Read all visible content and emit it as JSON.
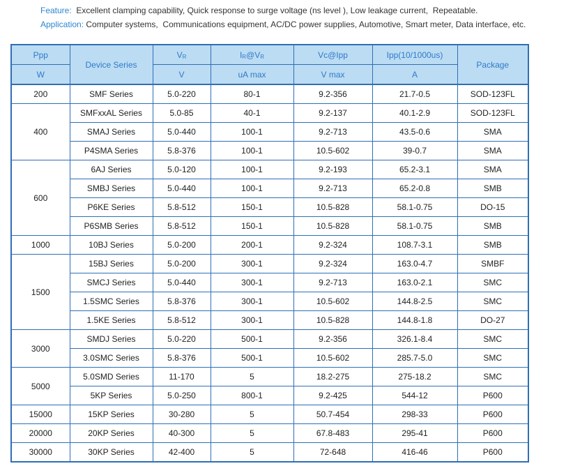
{
  "intro": {
    "feature": {
      "label": "Feature:",
      "text": "Excellent clamping capability, Quick response to surge voltage (ns level ), Low leakage current,  Repeatable."
    },
    "application": {
      "label": "Application:",
      "text": "Computer systems,  Communications equipment, AC/DC power supplies, Automotive, Smart meter, Data interface, etc."
    }
  },
  "table": {
    "header": {
      "ppp": "Ppp",
      "ppp_unit": "W",
      "series": "Device Series",
      "vr": [
        "V",
        "R"
      ],
      "vr_unit": "V",
      "ir": [
        "I",
        "R",
        "@V",
        "R"
      ],
      "ir_unit": "uA  max",
      "vc": "Vc@Ipp",
      "vc_unit": "V  max",
      "ipp": "Ipp(10/1000us)",
      "ipp_unit": "A",
      "package": "Package"
    },
    "groups": [
      {
        "ppp": "200",
        "rows": [
          [
            "SMF Series",
            "5.0-220",
            "80-1",
            "9.2-356",
            "21.7-0.5",
            "SOD-123FL"
          ]
        ]
      },
      {
        "ppp": "400",
        "rows": [
          [
            "SMFxxAL Series",
            "5.0-85",
            "40-1",
            "9.2-137",
            "40.1-2.9",
            "SOD-123FL"
          ],
          [
            "SMAJ Series",
            "5.0-440",
            "100-1",
            "9.2-713",
            "43.5-0.6",
            "SMA"
          ],
          [
            "P4SMA Series",
            "5.8-376",
            "100-1",
            "10.5-602",
            "39-0.7",
            "SMA"
          ]
        ]
      },
      {
        "ppp": "600",
        "rows": [
          [
            "6AJ Series",
            "5.0-120",
            "100-1",
            "9.2-193",
            "65.2-3.1",
            "SMA"
          ],
          [
            "SMBJ Series",
            "5.0-440",
            "100-1",
            "9.2-713",
            "65.2-0.8",
            "SMB"
          ],
          [
            "P6KE Series",
            "5.8-512",
            "150-1",
            "10.5-828",
            "58.1-0.75",
            "DO-15"
          ],
          [
            "P6SMB Series",
            "5.8-512",
            "150-1",
            "10.5-828",
            "58.1-0.75",
            "SMB"
          ]
        ]
      },
      {
        "ppp": "1000",
        "rows": [
          [
            "10BJ Series",
            "5.0-200",
            "200-1",
            "9.2-324",
            "108.7-3.1",
            "SMB"
          ]
        ]
      },
      {
        "ppp": "1500",
        "rows": [
          [
            "15BJ Series",
            "5.0-200",
            "300-1",
            "9.2-324",
            "163.0-4.7",
            "SMBF"
          ],
          [
            "SMCJ Series",
            "5.0-440",
            "300-1",
            "9.2-713",
            "163.0-2.1",
            "SMC"
          ],
          [
            "1.5SMC Series",
            "5.8-376",
            "300-1",
            "10.5-602",
            "144.8-2.5",
            "SMC"
          ],
          [
            "1.5KE Series",
            "5.8-512",
            "300-1",
            "10.5-828",
            "144.8-1.8",
            "DO-27"
          ]
        ]
      },
      {
        "ppp": "3000",
        "rows": [
          [
            "SMDJ Series",
            "5.0-220",
            "500-1",
            "9.2-356",
            "326.1-8.4",
            "SMC"
          ],
          [
            "3.0SMC Series",
            "5.8-376",
            "500-1",
            "10.5-602",
            "285.7-5.0",
            "SMC"
          ]
        ]
      },
      {
        "ppp": "5000",
        "rows": [
          [
            "5.0SMD Series",
            "11-170",
            "5",
            "18.2-275",
            "275-18.2",
            "SMC"
          ],
          [
            "5KP Series",
            "5.0-250",
            "800-1",
            "9.2-425",
            "544-12",
            "P600"
          ]
        ]
      },
      {
        "ppp": "15000",
        "rows": [
          [
            "15KP Series",
            "30-280",
            "5",
            "50.7-454",
            "298-33",
            "P600"
          ]
        ]
      },
      {
        "ppp": "20000",
        "rows": [
          [
            "20KP Series",
            "40-300",
            "5",
            "67.8-483",
            "295-41",
            "P600"
          ]
        ]
      },
      {
        "ppp": "30000",
        "rows": [
          [
            "30KP Series",
            "42-400",
            "5",
            "72-648",
            "416-46",
            "P600"
          ]
        ]
      }
    ]
  }
}
